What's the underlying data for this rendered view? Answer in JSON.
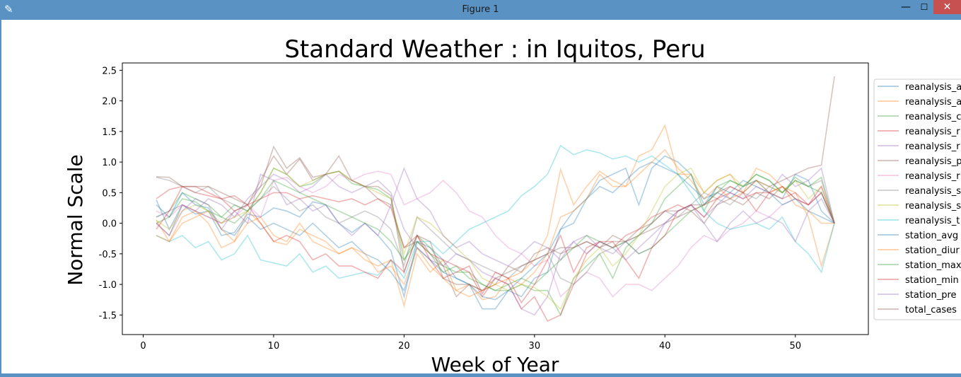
{
  "window": {
    "title": "Figure 1",
    "minimize_glyph": "—",
    "maximize_glyph": "☐",
    "close_glyph": "✕",
    "app_icon": "feather-icon"
  },
  "chart_data": {
    "type": "line",
    "title": "Standard Weather : in Iquitos, Peru",
    "xlabel": "Week of Year",
    "ylabel": "Normal Scale",
    "xlim": [
      -1.6,
      55.6
    ],
    "ylim": [
      -1.82,
      2.62
    ],
    "xticks": [
      0,
      10,
      20,
      30,
      40,
      50
    ],
    "yticks": [
      -1.5,
      -1.0,
      -0.5,
      0.0,
      0.5,
      1.0,
      1.5,
      2.0,
      2.5
    ],
    "legend_position": "right, partially clipped",
    "x": [
      1,
      2,
      3,
      4,
      5,
      6,
      7,
      8,
      9,
      10,
      11,
      12,
      13,
      14,
      15,
      16,
      17,
      18,
      19,
      20,
      21,
      22,
      23,
      24,
      25,
      26,
      27,
      28,
      29,
      30,
      31,
      32,
      33,
      34,
      35,
      36,
      37,
      38,
      39,
      40,
      41,
      42,
      43,
      44,
      45,
      46,
      47,
      48,
      49,
      50,
      51,
      52,
      53
    ],
    "series": [
      {
        "name": "reanalysis_a",
        "color": "#1f77b4",
        "values": [
          0.38,
          -0.1,
          0.3,
          0.15,
          0.2,
          -0.2,
          -0.15,
          0.15,
          0.1,
          0.25,
          0.2,
          0.1,
          0.35,
          0.3,
          0.0,
          -0.15,
          0.0,
          -0.2,
          -0.45,
          -1.2,
          -0.3,
          -0.4,
          -0.6,
          -0.9,
          -1.0,
          -1.4,
          -1.4,
          -1.1,
          -1.2,
          -0.9,
          -0.8,
          -0.1,
          0.0,
          0.4,
          0.7,
          0.8,
          0.9,
          0.3,
          0.9,
          1.1,
          1.0,
          0.8,
          0.3,
          0.6,
          0.5,
          0.7,
          0.6,
          0.5,
          0.4,
          0.8,
          0.7,
          0.2,
          0.0
        ]
      },
      {
        "name": "reanalysis_a",
        "color": "#ff7f0e",
        "values": [
          0.05,
          -0.3,
          0.1,
          0.2,
          0.0,
          -0.4,
          -0.3,
          0.2,
          0.0,
          -0.3,
          -0.35,
          -0.1,
          -0.2,
          -0.3,
          -0.5,
          -0.4,
          -0.6,
          -0.7,
          -0.6,
          -1.35,
          -0.5,
          -0.8,
          -0.6,
          -1.1,
          -1.0,
          -1.25,
          -1.2,
          -0.9,
          -0.8,
          -0.6,
          -0.2,
          0.88,
          0.3,
          0.6,
          0.85,
          0.7,
          0.6,
          1.1,
          1.2,
          1.6,
          0.8,
          0.8,
          0.5,
          0.7,
          0.8,
          0.5,
          0.9,
          0.8,
          0.6,
          0.5,
          0.1,
          -0.7,
          0.0
        ]
      },
      {
        "name": "reanalysis_c",
        "color": "#2ca02c",
        "values": [
          0.1,
          0.2,
          0.5,
          0.4,
          0.3,
          0.1,
          0.0,
          0.2,
          0.5,
          0.9,
          0.8,
          0.6,
          0.65,
          0.8,
          0.85,
          0.65,
          0.6,
          0.55,
          0.4,
          -0.6,
          -0.2,
          -0.4,
          -0.7,
          -0.8,
          -0.8,
          -1.0,
          -1.1,
          -1.1,
          -1.0,
          -1.1,
          -1.1,
          -1.5,
          -0.9,
          -0.7,
          -0.5,
          -0.9,
          -0.4,
          -0.2,
          0.0,
          0.4,
          0.6,
          0.8,
          0.2,
          0.6,
          0.7,
          0.6,
          0.8,
          0.7,
          0.5,
          0.75,
          0.6,
          0.75,
          0.0
        ]
      },
      {
        "name": "reanalysis_r",
        "color": "#d62728",
        "values": [
          0.4,
          0.55,
          0.6,
          0.5,
          0.45,
          0.4,
          0.2,
          0.3,
          0.4,
          0.5,
          0.5,
          0.4,
          0.45,
          0.4,
          0.35,
          0.4,
          0.3,
          0.4,
          0.25,
          -0.4,
          -0.2,
          -0.5,
          -0.6,
          -0.7,
          -0.8,
          -1.2,
          -0.9,
          -1.0,
          -1.4,
          -1.2,
          -1.6,
          -1.5,
          -1.0,
          -0.5,
          -0.3,
          -0.4,
          -0.2,
          -0.1,
          0.1,
          0.2,
          0.3,
          0.2,
          0.3,
          0.4,
          0.5,
          0.4,
          0.5,
          0.5,
          0.6,
          0.4,
          0.3,
          0.5,
          0.0
        ]
      },
      {
        "name": "reanalysis_r",
        "color": "#9467bd",
        "values": [
          0.1,
          0.2,
          0.3,
          0.2,
          0.4,
          0.3,
          0.1,
          0.4,
          0.6,
          0.8,
          0.7,
          0.5,
          0.6,
          0.8,
          0.6,
          0.5,
          0.6,
          0.7,
          0.5,
          -0.1,
          -0.4,
          -0.6,
          -0.7,
          -0.5,
          -0.6,
          -0.8,
          -0.9,
          -1.0,
          -1.4,
          -1.5,
          -1.2,
          -0.5,
          -0.3,
          -0.2,
          -0.4,
          -0.5,
          -0.3,
          -0.5,
          -0.4,
          0.0,
          0.2,
          0.3,
          0.1,
          0.3,
          0.5,
          0.4,
          0.6,
          0.5,
          0.8,
          0.6,
          0.7,
          0.9,
          0.0
        ]
      },
      {
        "name": "reanalysis_p",
        "color": "#8c564b",
        "values": [
          0.0,
          -0.2,
          0.3,
          0.2,
          0.1,
          0.0,
          0.2,
          0.3,
          0.7,
          1.1,
          0.8,
          1.05,
          0.7,
          0.8,
          0.85,
          0.7,
          0.6,
          0.4,
          0.3,
          -0.4,
          -0.3,
          -0.5,
          -0.7,
          -1.2,
          -1.0,
          -1.1,
          -1.0,
          -0.7,
          -0.8,
          -0.5,
          -0.4,
          -0.5,
          -0.4,
          -0.3,
          -0.4,
          -0.3,
          -0.3,
          -0.2,
          -0.1,
          0.0,
          0.1,
          0.2,
          0.0,
          0.3,
          0.4,
          0.3,
          0.5,
          0.4,
          0.6,
          0.4,
          0.3,
          0.5,
          0.0
        ]
      },
      {
        "name": "reanalysis_r",
        "color": "#e377c2",
        "values": [
          0.2,
          0.1,
          0.3,
          0.2,
          0.1,
          0.0,
          0.1,
          0.3,
          0.1,
          0.7,
          0.75,
          0.6,
          0.5,
          0.6,
          0.8,
          0.7,
          0.8,
          0.85,
          0.8,
          0.3,
          0.4,
          0.5,
          0.7,
          0.5,
          0.2,
          0.1,
          -0.2,
          -0.4,
          -0.5,
          -0.7,
          -0.6,
          -1.2,
          -1.0,
          -0.8,
          -0.9,
          -1.2,
          -1.0,
          -1.0,
          -1.1,
          -0.9,
          -0.7,
          -0.4,
          -0.2,
          -0.3,
          -0.1,
          0.0,
          0.2,
          0.1,
          0.3,
          0.4,
          0.3,
          0.5,
          0.0
        ]
      },
      {
        "name": "reanalysis_s",
        "color": "#7f7f7f",
        "values": [
          0.75,
          0.7,
          0.6,
          0.5,
          0.6,
          0.4,
          0.3,
          0.2,
          0.4,
          0.6,
          0.4,
          0.2,
          0.3,
          0.1,
          0.0,
          0.1,
          0.2,
          0.1,
          -0.1,
          -0.7,
          0.1,
          -0.1,
          -0.3,
          -0.5,
          -0.6,
          -0.7,
          -0.8,
          -0.9,
          -0.7,
          -0.6,
          -0.5,
          -0.9,
          -1.0,
          -0.8,
          -0.5,
          -0.4,
          -0.3,
          -0.2,
          0.0,
          0.2,
          0.1,
          0.3,
          0.5,
          0.4,
          0.3,
          0.5,
          0.4,
          0.6,
          0.5,
          0.7,
          0.6,
          0.7,
          0.0
        ]
      },
      {
        "name": "reanalysis_s",
        "color": "#bcbd22",
        "values": [
          0.05,
          -0.1,
          0.2,
          0.3,
          0.2,
          0.0,
          0.1,
          0.2,
          0.5,
          0.9,
          0.8,
          0.6,
          0.7,
          0.8,
          0.85,
          0.7,
          0.6,
          0.5,
          0.4,
          -0.5,
          0.1,
          0.0,
          -0.2,
          -0.4,
          -0.6,
          -0.9,
          -1.0,
          -1.1,
          -1.0,
          -1.05,
          -1.2,
          -1.4,
          -0.9,
          -0.6,
          -0.4,
          -0.7,
          -0.5,
          -0.2,
          0.2,
          0.6,
          0.8,
          0.9,
          0.5,
          0.7,
          0.8,
          0.6,
          0.7,
          0.6,
          0.5,
          0.7,
          0.4,
          0.6,
          0.0
        ]
      },
      {
        "name": "reanalysis_t",
        "color": "#17becf",
        "values": [
          -0.2,
          -0.3,
          -0.2,
          -0.4,
          -0.3,
          -0.6,
          -0.5,
          -0.2,
          -0.6,
          -0.65,
          -0.7,
          -0.5,
          -0.8,
          -0.7,
          -0.9,
          -0.85,
          -0.8,
          -0.85,
          -0.6,
          -0.9,
          -0.3,
          -0.3,
          -0.5,
          -0.3,
          -0.1,
          0.0,
          0.1,
          0.2,
          0.45,
          0.6,
          0.8,
          1.27,
          1.12,
          1.2,
          1.15,
          1.05,
          1.1,
          1.0,
          1.1,
          0.95,
          0.8,
          0.5,
          0.2,
          0.0,
          -0.1,
          -0.05,
          0.0,
          -0.1,
          0.1,
          -0.3,
          -0.5,
          -0.8,
          0.0
        ]
      },
      {
        "name": "station_avg",
        "color": "#1f77b4",
        "values": [
          0.3,
          0.1,
          0.5,
          0.3,
          0.25,
          -0.1,
          -0.2,
          0.1,
          -0.1,
          0.0,
          -0.1,
          -0.2,
          0.0,
          -0.2,
          -0.4,
          -0.3,
          -0.5,
          -0.6,
          -0.8,
          -1.1,
          -0.4,
          -0.6,
          -0.8,
          -0.9,
          -1.0,
          -1.2,
          -1.25,
          -1.1,
          -0.9,
          -0.7,
          -0.5,
          -0.1,
          0.2,
          0.4,
          0.6,
          0.5,
          0.7,
          0.9,
          1.0,
          0.9,
          0.8,
          0.6,
          0.4,
          0.5,
          0.4,
          0.6,
          0.7,
          0.5,
          0.3,
          0.4,
          0.2,
          0.1,
          0.0
        ]
      },
      {
        "name": "station_diur",
        "color": "#ff7f0e",
        "values": [
          -0.2,
          -0.3,
          0.0,
          0.1,
          0.2,
          -0.1,
          -0.3,
          0.0,
          0.1,
          -0.2,
          -0.3,
          0.0,
          -0.3,
          -0.4,
          -0.5,
          -0.4,
          -0.5,
          -0.8,
          -0.7,
          -1.0,
          -0.4,
          -0.7,
          -0.9,
          -1.1,
          -1.2,
          -1.1,
          -1.0,
          -0.9,
          -1.0,
          -0.8,
          -0.5,
          0.1,
          0.2,
          0.4,
          0.8,
          0.6,
          0.6,
          0.8,
          1.0,
          1.2,
          0.9,
          0.7,
          0.4,
          0.6,
          0.4,
          0.5,
          0.7,
          0.5,
          0.6,
          0.3,
          0.2,
          0.0,
          0.0
        ]
      },
      {
        "name": "station_max",
        "color": "#2ca02c",
        "values": [
          0.0,
          0.1,
          0.4,
          0.35,
          0.2,
          0.1,
          0.3,
          0.2,
          0.4,
          0.7,
          0.6,
          0.5,
          0.4,
          0.3,
          0.2,
          0.1,
          0.0,
          -0.1,
          -0.3,
          -0.6,
          -0.3,
          -0.5,
          -0.8,
          -0.7,
          -0.9,
          -1.0,
          -1.1,
          -1.0,
          -0.9,
          -1.0,
          -0.8,
          -0.6,
          -0.4,
          -0.2,
          -0.3,
          -0.4,
          -0.3,
          -0.5,
          -0.4,
          -0.2,
          0.0,
          0.2,
          0.3,
          0.5,
          0.7,
          0.6,
          0.8,
          0.7,
          0.5,
          0.7,
          0.6,
          0.5,
          0.0
        ]
      },
      {
        "name": "station_min",
        "color": "#d62728",
        "values": [
          -0.1,
          0.2,
          0.6,
          0.6,
          0.5,
          0.4,
          0.45,
          0.3,
          0.0,
          -0.3,
          -0.2,
          -0.3,
          -0.6,
          -0.5,
          -0.7,
          -0.7,
          -0.8,
          -0.9,
          -0.6,
          -0.8,
          -0.2,
          -0.6,
          -0.9,
          -0.8,
          -0.7,
          -1.15,
          -0.8,
          -0.9,
          -1.3,
          -1.0,
          -0.6,
          -0.2,
          -0.8,
          -0.4,
          -0.3,
          -0.3,
          -0.6,
          -0.9,
          -0.4,
          -0.2,
          0.2,
          0.3,
          0.1,
          0.4,
          0.6,
          0.5,
          0.2,
          0.5,
          0.4,
          0.5,
          0.3,
          0.6,
          0.0
        ]
      },
      {
        "name": "station_pre",
        "color": "#9467bd",
        "values": [
          0.0,
          -0.2,
          0.2,
          0.4,
          0.3,
          -0.1,
          0.2,
          0.0,
          0.8,
          0.7,
          0.3,
          0.4,
          0.2,
          0.3,
          0.0,
          -0.2,
          0.0,
          -0.2,
          0.3,
          0.9,
          0.4,
          0.2,
          -0.2,
          -0.4,
          -0.3,
          -0.5,
          -0.6,
          -0.7,
          -0.5,
          -0.3,
          -0.4,
          -0.6,
          -0.3,
          -0.5,
          -0.3,
          -0.4,
          -0.6,
          -0.4,
          -0.2,
          0.0,
          0.2,
          0.3,
          0.0,
          -0.3,
          0.0,
          0.2,
          0.0,
          0.1,
          0.0,
          -0.3,
          0.2,
          0.4,
          0.0
        ]
      },
      {
        "name": "total_cases",
        "color": "#8c564b",
        "values": [
          0.76,
          0.75,
          0.6,
          0.6,
          0.6,
          0.5,
          0.4,
          0.3,
          0.6,
          1.25,
          0.9,
          1.07,
          0.75,
          0.8,
          1.1,
          0.7,
          0.6,
          0.6,
          0.45,
          -0.8,
          -0.2,
          -0.3,
          -0.9,
          -1.0,
          -1.0,
          -1.1,
          -0.9,
          -0.8,
          -0.7,
          -0.6,
          -0.5,
          -0.4,
          -0.4,
          -0.3,
          -0.4,
          -0.2,
          -0.3,
          -0.1,
          0.0,
          0.2,
          0.2,
          0.3,
          0.3,
          0.5,
          0.6,
          0.5,
          0.7,
          0.6,
          0.7,
          0.8,
          0.9,
          0.95,
          2.4
        ]
      }
    ]
  }
}
